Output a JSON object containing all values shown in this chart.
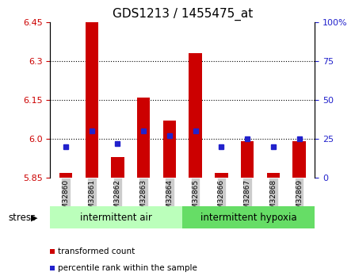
{
  "title": "GDS1213 / 1455475_at",
  "samples": [
    "GSM32860",
    "GSM32861",
    "GSM32862",
    "GSM32863",
    "GSM32864",
    "GSM32865",
    "GSM32866",
    "GSM32867",
    "GSM32868",
    "GSM32869"
  ],
  "red_values": [
    5.87,
    6.47,
    5.93,
    6.16,
    6.07,
    6.33,
    5.87,
    5.99,
    5.87,
    5.99
  ],
  "blue_pct": [
    20,
    30,
    22,
    30,
    27,
    30,
    20,
    25,
    20,
    25
  ],
  "ymin": 5.85,
  "ymax": 6.45,
  "yticks": [
    5.85,
    6.0,
    6.15,
    6.3,
    6.45
  ],
  "right_yticks": [
    0,
    25,
    50,
    75,
    100
  ],
  "group1_label": "intermittent air",
  "group2_label": "intermittent hypoxia",
  "group1_count": 5,
  "stress_label": "stress",
  "legend_red": "transformed count",
  "legend_blue": "percentile rank within the sample",
  "bar_color": "#cc0000",
  "dot_color": "#2222cc",
  "group1_color": "#bbffbb",
  "group2_color": "#66dd66",
  "tick_bg": "#cccccc",
  "bg_color": "#ffffff",
  "title_fontsize": 11,
  "grid_lines": [
    6.0,
    6.15,
    6.3
  ]
}
